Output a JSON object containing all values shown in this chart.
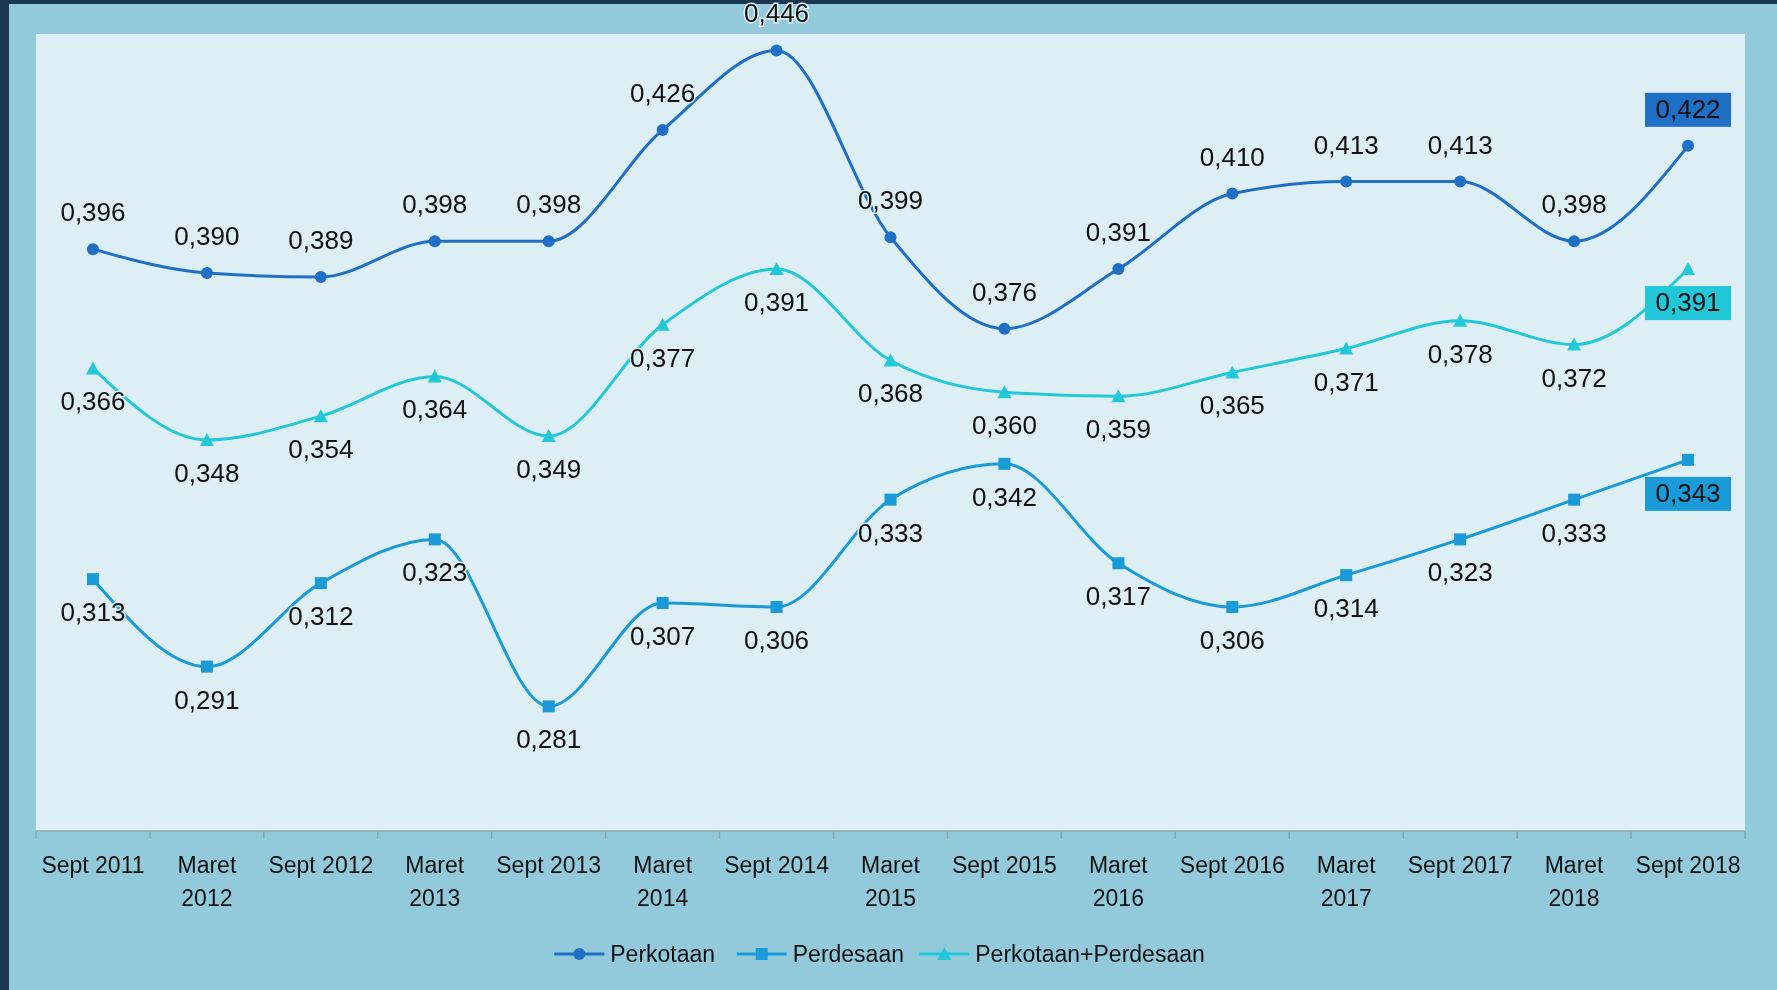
{
  "chart_data": {
    "type": "line",
    "categories": [
      "Sept 2011",
      "Maret 2012",
      "Sept 2012",
      "Maret 2013",
      "Sept 2013",
      "Maret 2014",
      "Sept 2014",
      "Maret 2015",
      "Sept 2015",
      "Maret 2016",
      "Sept 2016",
      "Maret 2017",
      "Sept 2017",
      "Maret 2018",
      "Sept 2018"
    ],
    "series": [
      {
        "name": "Perkotaan",
        "color": "#1f6fc5",
        "marker": "circle",
        "values": [
          0.396,
          0.39,
          0.389,
          0.398,
          0.398,
          0.426,
          0.446,
          0.399,
          0.376,
          0.391,
          0.41,
          0.413,
          0.413,
          0.398,
          0.422
        ],
        "value_labels": [
          "0,396",
          "0,390",
          "0,389",
          "0,398",
          "0,398",
          "0,426",
          "0,446",
          "0,399",
          "0,376",
          "0,391",
          "0,410",
          "0,413",
          "0,413",
          "0,398",
          "0,422"
        ]
      },
      {
        "name": "Perdesaan",
        "color": "#1a9ad6",
        "marker": "square",
        "values": [
          0.313,
          0.291,
          0.312,
          0.323,
          0.281,
          0.307,
          0.306,
          0.333,
          0.342,
          0.317,
          0.306,
          0.314,
          0.323,
          0.333,
          0.343
        ],
        "value_labels": [
          "0,313",
          "0,291",
          "0,312",
          "0,323",
          "0,281",
          "0,307",
          "0,306",
          "0,333",
          "0,342",
          "0,317",
          "0,306",
          "0,314",
          "0,323",
          "0,333",
          "0,343"
        ]
      },
      {
        "name": "Perkotaan+Perdesaan",
        "color": "#22c8d8",
        "marker": "triangle",
        "values": [
          0.366,
          0.348,
          0.354,
          0.364,
          0.349,
          0.377,
          0.391,
          0.368,
          0.36,
          0.359,
          0.365,
          0.371,
          0.378,
          0.372,
          0.391
        ],
        "value_labels": [
          "0,366",
          "0,348",
          "0,354",
          "0,364",
          "0,349",
          "0,377",
          "0,391",
          "0,368",
          "0,360",
          "0,359",
          "0,365",
          "0,371",
          "0,378",
          "0,372",
          "0,391"
        ]
      }
    ],
    "legend": "bottom"
  }
}
